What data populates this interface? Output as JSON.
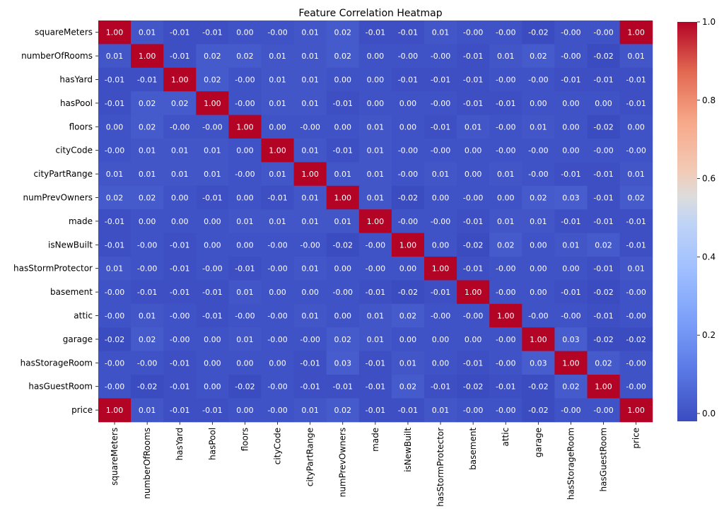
{
  "chart_data": {
    "type": "heatmap",
    "title": "Feature Correlation Heatmap",
    "colormap": "coolwarm",
    "vmin": -0.02,
    "vmax": 1.0,
    "colorbar_ticks": [
      "0.0",
      "0.2",
      "0.4",
      "0.6",
      "0.8",
      "1.0"
    ],
    "colorbar_tick_values": [
      0.0,
      0.2,
      0.4,
      0.6,
      0.8,
      1.0
    ],
    "row_labels": [
      "squareMeters",
      "numberOfRooms",
      "hasYard",
      "hasPool",
      "floors",
      "cityCode",
      "cityPartRange",
      "numPrevOwners",
      "made",
      "isNewBuilt",
      "hasStormProtector",
      "basement",
      "attic",
      "garage",
      "hasStorageRoom",
      "hasGuestRoom",
      "price"
    ],
    "col_labels": [
      "squareMeters",
      "numberOfRooms",
      "hasYard",
      "hasPool",
      "floors",
      "cityCode",
      "cityPartRange",
      "numPrevOwners",
      "made",
      "isNewBuilt",
      "hasStormProtector",
      "basement",
      "attic",
      "garage",
      "hasStorageRoom",
      "hasGuestRoom",
      "price"
    ],
    "values": [
      [
        "1.00",
        "0.01",
        "-0.01",
        "-0.01",
        "0.00",
        "-0.00",
        "0.01",
        "0.02",
        "-0.01",
        "-0.01",
        "0.01",
        "-0.00",
        "-0.00",
        "-0.02",
        "-0.00",
        "-0.00",
        "1.00"
      ],
      [
        "0.01",
        "1.00",
        "-0.01",
        "0.02",
        "0.02",
        "0.01",
        "0.01",
        "0.02",
        "0.00",
        "-0.00",
        "-0.00",
        "-0.01",
        "0.01",
        "0.02",
        "-0.00",
        "-0.02",
        "0.01"
      ],
      [
        "-0.01",
        "-0.01",
        "1.00",
        "0.02",
        "-0.00",
        "0.01",
        "0.01",
        "0.00",
        "0.00",
        "-0.01",
        "-0.01",
        "-0.01",
        "-0.00",
        "-0.00",
        "-0.01",
        "-0.01",
        "-0.01"
      ],
      [
        "-0.01",
        "0.02",
        "0.02",
        "1.00",
        "-0.00",
        "0.01",
        "0.01",
        "-0.01",
        "0.00",
        "0.00",
        "-0.00",
        "-0.01",
        "-0.01",
        "0.00",
        "0.00",
        "0.00",
        "-0.01"
      ],
      [
        "0.00",
        "0.02",
        "-0.00",
        "-0.00",
        "1.00",
        "0.00",
        "-0.00",
        "0.00",
        "0.01",
        "0.00",
        "-0.01",
        "0.01",
        "-0.00",
        "0.01",
        "0.00",
        "-0.02",
        "0.00"
      ],
      [
        "-0.00",
        "0.01",
        "0.01",
        "0.01",
        "0.00",
        "1.00",
        "0.01",
        "-0.01",
        "0.01",
        "-0.00",
        "-0.00",
        "0.00",
        "-0.00",
        "-0.00",
        "0.00",
        "-0.00",
        "-0.00"
      ],
      [
        "0.01",
        "0.01",
        "0.01",
        "0.01",
        "-0.00",
        "0.01",
        "1.00",
        "0.01",
        "0.01",
        "-0.00",
        "0.01",
        "0.00",
        "0.01",
        "-0.00",
        "-0.01",
        "-0.01",
        "0.01"
      ],
      [
        "0.02",
        "0.02",
        "0.00",
        "-0.01",
        "0.00",
        "-0.01",
        "0.01",
        "1.00",
        "0.01",
        "-0.02",
        "0.00",
        "-0.00",
        "0.00",
        "0.02",
        "0.03",
        "-0.01",
        "0.02"
      ],
      [
        "-0.01",
        "0.00",
        "0.00",
        "0.00",
        "0.01",
        "0.01",
        "0.01",
        "0.01",
        "1.00",
        "-0.00",
        "-0.00",
        "-0.01",
        "0.01",
        "0.01",
        "-0.01",
        "-0.01",
        "-0.01"
      ],
      [
        "-0.01",
        "-0.00",
        "-0.01",
        "0.00",
        "0.00",
        "-0.00",
        "-0.00",
        "-0.02",
        "-0.00",
        "1.00",
        "0.00",
        "-0.02",
        "0.02",
        "0.00",
        "0.01",
        "0.02",
        "-0.01"
      ],
      [
        "0.01",
        "-0.00",
        "-0.01",
        "-0.00",
        "-0.01",
        "-0.00",
        "0.01",
        "0.00",
        "-0.00",
        "0.00",
        "1.00",
        "-0.01",
        "-0.00",
        "0.00",
        "0.00",
        "-0.01",
        "0.01"
      ],
      [
        "-0.00",
        "-0.01",
        "-0.01",
        "-0.01",
        "0.01",
        "0.00",
        "0.00",
        "-0.00",
        "-0.01",
        "-0.02",
        "-0.01",
        "1.00",
        "-0.00",
        "0.00",
        "-0.01",
        "-0.02",
        "-0.00"
      ],
      [
        "-0.00",
        "0.01",
        "-0.00",
        "-0.01",
        "-0.00",
        "-0.00",
        "0.01",
        "0.00",
        "0.01",
        "0.02",
        "-0.00",
        "-0.00",
        "1.00",
        "-0.00",
        "-0.00",
        "-0.01",
        "-0.00"
      ],
      [
        "-0.02",
        "0.02",
        "-0.00",
        "0.00",
        "0.01",
        "-0.00",
        "-0.00",
        "0.02",
        "0.01",
        "0.00",
        "0.00",
        "0.00",
        "-0.00",
        "1.00",
        "0.03",
        "-0.02",
        "-0.02"
      ],
      [
        "-0.00",
        "-0.00",
        "-0.01",
        "0.00",
        "0.00",
        "0.00",
        "-0.01",
        "0.03",
        "-0.01",
        "0.01",
        "0.00",
        "-0.01",
        "-0.00",
        "0.03",
        "1.00",
        "0.02",
        "-0.00"
      ],
      [
        "-0.00",
        "-0.02",
        "-0.01",
        "0.00",
        "-0.02",
        "-0.00",
        "-0.01",
        "-0.01",
        "-0.01",
        "0.02",
        "-0.01",
        "-0.02",
        "-0.01",
        "-0.02",
        "0.02",
        "1.00",
        "-0.00"
      ],
      [
        "1.00",
        "0.01",
        "-0.01",
        "-0.01",
        "0.00",
        "-0.00",
        "0.01",
        "0.02",
        "-0.01",
        "-0.01",
        "0.01",
        "-0.00",
        "-0.00",
        "-0.02",
        "-0.00",
        "-0.00",
        "1.00"
      ]
    ]
  }
}
